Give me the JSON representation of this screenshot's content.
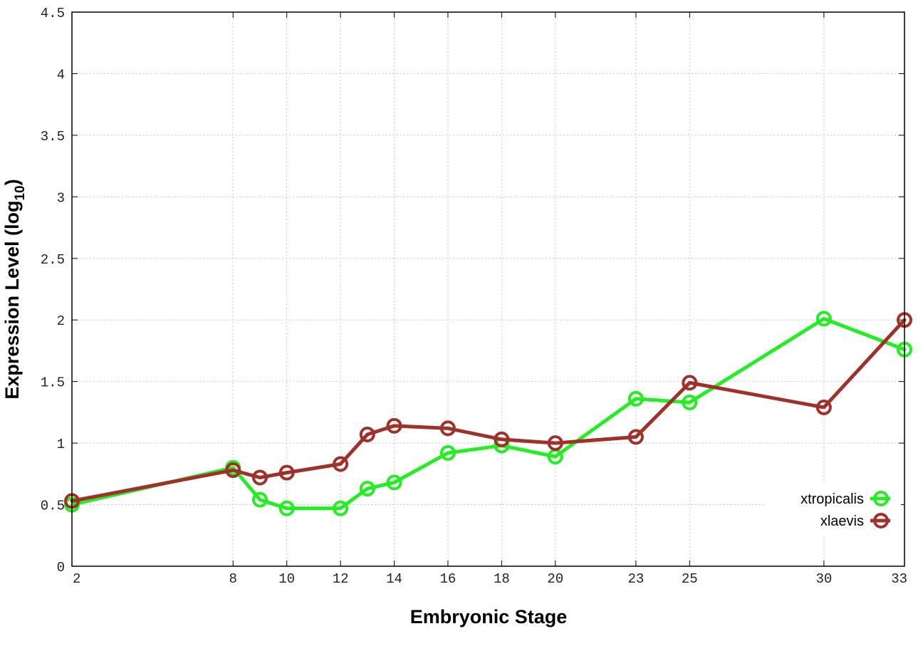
{
  "chart_data": {
    "type": "line",
    "title": "",
    "xlabel": "Embryonic Stage",
    "ylabel_main": "Expression Level (log",
    "ylabel_sub": "10",
    "ylabel_close": ")",
    "xlim": [
      2,
      33
    ],
    "ylim": [
      0,
      4.5
    ],
    "x_ticks": [
      2,
      8,
      10,
      12,
      14,
      16,
      18,
      20,
      23,
      25,
      30,
      33
    ],
    "x_tick_labels": [
      "2",
      "8",
      "10",
      "12",
      "14",
      "16",
      "18",
      "20",
      "23",
      "25",
      "30",
      "33"
    ],
    "y_ticks": [
      0,
      0.5,
      1,
      1.5,
      2,
      2.5,
      3,
      3.5,
      4,
      4.5
    ],
    "y_tick_labels": [
      "0",
      "0.5",
      "1",
      "1.5",
      "2",
      "2.5",
      "3",
      "3.5",
      "4",
      "4.5"
    ],
    "grid": true,
    "legend_position": "bottom-right",
    "series": [
      {
        "name": "xtropicalis",
        "color": "#22ee22",
        "x": [
          2,
          8,
          9,
          10,
          12,
          13,
          14,
          16,
          18,
          20,
          23,
          25,
          30,
          33
        ],
        "values": [
          0.5,
          0.8,
          0.54,
          0.47,
          0.47,
          0.63,
          0.68,
          0.92,
          0.98,
          0.89,
          1.36,
          1.33,
          2.01,
          1.76
        ]
      },
      {
        "name": "xlaevis",
        "color": "#a0302a",
        "x": [
          2,
          8,
          9,
          10,
          12,
          13,
          14,
          16,
          18,
          20,
          23,
          25,
          30,
          33
        ],
        "values": [
          0.53,
          0.78,
          0.72,
          0.76,
          0.83,
          1.07,
          1.14,
          1.12,
          1.03,
          1.0,
          1.05,
          1.49,
          1.29,
          2.0
        ]
      }
    ]
  }
}
